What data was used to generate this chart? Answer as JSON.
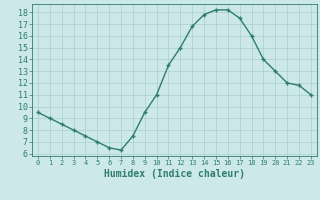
{
  "x": [
    0,
    1,
    2,
    3,
    4,
    5,
    6,
    7,
    8,
    9,
    10,
    11,
    12,
    13,
    14,
    15,
    16,
    17,
    18,
    19,
    20,
    21,
    22,
    23
  ],
  "y": [
    9.5,
    9.0,
    8.5,
    8.0,
    7.5,
    7.0,
    6.5,
    6.3,
    7.5,
    9.5,
    11.0,
    13.5,
    15.0,
    16.8,
    17.8,
    18.2,
    18.2,
    17.5,
    16.0,
    14.0,
    13.0,
    12.0,
    11.8,
    11.0
  ],
  "line_color": "#2e7d6e",
  "marker": "+",
  "marker_size": 3,
  "line_width": 1.0,
  "background_color": "#cce8e8",
  "grid_color": "#aacece",
  "xlabel": "Humidex (Indice chaleur)",
  "xlim": [
    -0.5,
    23.5
  ],
  "ylim": [
    5.8,
    18.7
  ],
  "yticks": [
    6,
    7,
    8,
    9,
    10,
    11,
    12,
    13,
    14,
    15,
    16,
    17,
    18
  ],
  "xticks": [
    0,
    1,
    2,
    3,
    4,
    5,
    6,
    7,
    8,
    9,
    10,
    11,
    12,
    13,
    14,
    15,
    16,
    17,
    18,
    19,
    20,
    21,
    22,
    23
  ],
  "tick_color": "#2e7d6e",
  "xlabel_fontsize": 7,
  "ytick_fontsize": 6,
  "xtick_fontsize": 5,
  "xlabel_color": "#2e7d6e",
  "tick_label_color": "#2e7d6e",
  "marker_edge_width": 1.0
}
